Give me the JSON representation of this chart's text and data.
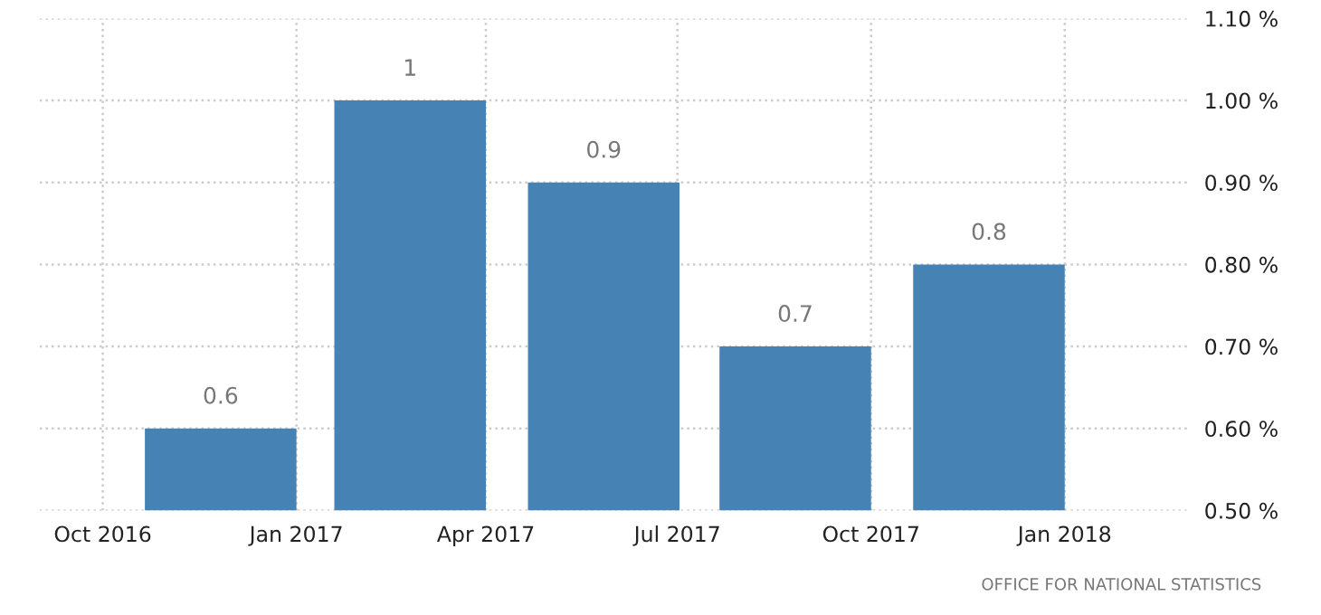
{
  "chart_data": {
    "type": "bar",
    "x": [
      "2016-11-26",
      "2017-02-24",
      "2017-05-27",
      "2017-08-26",
      "2017-11-26"
    ],
    "series": [
      {
        "color": "#4682b4",
        "values": [
          0.6,
          1,
          0.9,
          0.7,
          0.8
        ]
      }
    ],
    "data_labels": true,
    "xlim": [
      "2016-09-01",
      "2018-03-01"
    ],
    "xticks": [
      {
        "value": "2016-10-01",
        "label": "Oct 2016"
      },
      {
        "value": "2017-01-01",
        "label": "Jan 2017"
      },
      {
        "value": "2017-04-01",
        "label": "Apr 2017"
      },
      {
        "value": "2017-07-01",
        "label": "Jul 2017"
      },
      {
        "value": "2017-10-01",
        "label": "Oct 2017"
      },
      {
        "value": "2018-01-01",
        "label": "Jan 2018"
      }
    ],
    "ylim": [
      0.5,
      1.1
    ],
    "yticks": [
      {
        "value": 0.5,
        "label": "0.50 %"
      },
      {
        "value": 0.6,
        "label": "0.60 %"
      },
      {
        "value": 0.7,
        "label": "0.70 %"
      },
      {
        "value": 0.8,
        "label": "0.80 %"
      },
      {
        "value": 0.9,
        "label": "0.90 %"
      },
      {
        "value": 1.0,
        "label": "1.00 %"
      },
      {
        "value": 1.1,
        "label": "1.10 %"
      }
    ],
    "grid": true,
    "annotations": [
      "OFFICE FOR NATIONAL STATISTICS"
    ]
  }
}
